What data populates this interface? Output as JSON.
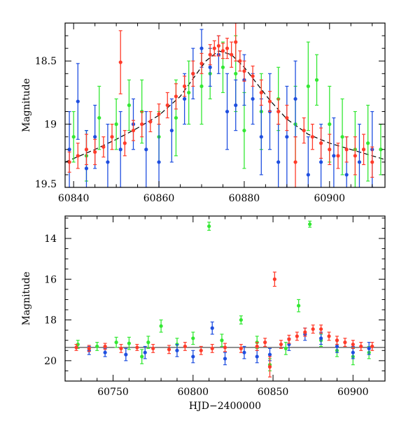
{
  "colors": {
    "red": "#ff3b2a",
    "green": "#33e833",
    "blue": "#1f4fe0",
    "model": "#000000"
  },
  "chart_data": [
    {
      "type": "scatter",
      "title": "",
      "xlabel": "",
      "ylabel": "Magnitude",
      "xlim": [
        60838,
        60913
      ],
      "ylim": [
        19.5,
        18.2
      ],
      "y_inverted": true,
      "xticks": [
        60840,
        60860,
        60880,
        60900
      ],
      "xtick_labels": [
        "60840",
        "60860",
        "60880",
        "60900"
      ],
      "yticks": [
        18.5,
        19,
        19.5
      ],
      "ytick_labels": [
        "18.5",
        "19",
        "19.5"
      ],
      "model_curve": {
        "x": [
          60838,
          60845,
          60850,
          60855,
          60860,
          60865,
          60868,
          60871,
          60874,
          60877,
          60880,
          60883,
          60886,
          60890,
          60895,
          60900,
          60905,
          60913
        ],
        "y": [
          19.3,
          19.2,
          19.12,
          19.03,
          18.93,
          18.78,
          18.64,
          18.5,
          18.42,
          18.45,
          18.55,
          18.68,
          18.81,
          18.96,
          19.08,
          19.15,
          19.2,
          19.28
        ]
      },
      "series": [
        {
          "color": "red",
          "points": [
            [
              60839,
              19.3,
              0.08
            ],
            [
              60841,
              19.25,
              0.1
            ],
            [
              60843,
              19.2,
              0.12
            ],
            [
              60845,
              19.22,
              0.1
            ],
            [
              60847,
              19.18,
              0.08
            ],
            [
              60849,
              19.1,
              0.1
            ],
            [
              60851,
              18.51,
              0.25
            ],
            [
              60852,
              19.15,
              0.1
            ],
            [
              60854,
              19.05,
              0.08
            ],
            [
              60856,
              19.0,
              0.1
            ],
            [
              60858,
              18.98,
              0.08
            ],
            [
              60860,
              18.92,
              0.08
            ],
            [
              60862,
              18.85,
              0.1
            ],
            [
              60864,
              18.78,
              0.1
            ],
            [
              60866,
              18.7,
              0.08
            ],
            [
              60868,
              18.6,
              0.1
            ],
            [
              60870,
              18.52,
              0.08
            ],
            [
              60872,
              18.45,
              0.08
            ],
            [
              60873,
              18.4,
              0.06
            ],
            [
              60874,
              18.38,
              0.08
            ],
            [
              60875,
              18.42,
              0.06
            ],
            [
              60876,
              18.4,
              0.08
            ],
            [
              60877,
              18.45,
              0.1
            ],
            [
              60878,
              18.35,
              0.15
            ],
            [
              60879,
              18.5,
              0.08
            ],
            [
              60880,
              18.58,
              0.08
            ],
            [
              60882,
              18.62,
              0.08
            ],
            [
              60884,
              18.75,
              0.1
            ],
            [
              60886,
              18.82,
              0.08
            ],
            [
              60888,
              18.9,
              0.1
            ],
            [
              60890,
              18.95,
              0.1
            ],
            [
              60892,
              19.3,
              0.2
            ],
            [
              60894,
              19.05,
              0.1
            ],
            [
              60896,
              19.1,
              0.1
            ],
            [
              60898,
              19.15,
              0.12
            ],
            [
              60900,
              19.2,
              0.12
            ],
            [
              60902,
              19.25,
              0.1
            ],
            [
              60904,
              19.2,
              0.1
            ],
            [
              60906,
              19.25,
              0.15
            ],
            [
              60908,
              19.2,
              0.12
            ],
            [
              60910,
              19.3,
              0.12
            ]
          ]
        },
        {
          "color": "green",
          "points": [
            [
              60840,
              19.1,
              0.2
            ],
            [
              60843,
              19.25,
              0.2
            ],
            [
              60846,
              18.95,
              0.25
            ],
            [
              60850,
              19.0,
              0.2
            ],
            [
              60853,
              18.85,
              0.2
            ],
            [
              60856,
              18.9,
              0.25
            ],
            [
              60860,
              19.1,
              0.2
            ],
            [
              60864,
              18.95,
              0.3
            ],
            [
              60867,
              18.75,
              0.25
            ],
            [
              60870,
              18.7,
              0.3
            ],
            [
              60872,
              18.6,
              0.2
            ],
            [
              60875,
              18.55,
              0.2
            ],
            [
              60878,
              18.6,
              0.3
            ],
            [
              60880,
              19.05,
              0.3
            ],
            [
              60884,
              18.9,
              0.3
            ],
            [
              60888,
              18.8,
              0.25
            ],
            [
              60892,
              19.0,
              0.3
            ],
            [
              60895,
              18.7,
              0.35
            ],
            [
              60897,
              18.65,
              0.2
            ],
            [
              60900,
              19.0,
              0.3
            ],
            [
              60903,
              19.1,
              0.3
            ],
            [
              60906,
              19.2,
              0.3
            ],
            [
              60909,
              19.15,
              0.3
            ],
            [
              60912,
              19.2,
              0.2
            ]
          ]
        },
        {
          "color": "blue",
          "points": [
            [
              60839,
              19.2,
              0.3
            ],
            [
              60841,
              18.82,
              0.3
            ],
            [
              60843,
              19.35,
              0.3
            ],
            [
              60845,
              19.1,
              0.25
            ],
            [
              60848,
              19.3,
              0.3
            ],
            [
              60851,
              19.2,
              0.3
            ],
            [
              60854,
              19.0,
              0.2
            ],
            [
              60857,
              19.2,
              0.3
            ],
            [
              60860,
              19.3,
              0.3
            ],
            [
              60863,
              19.05,
              0.25
            ],
            [
              60866,
              18.8,
              0.2
            ],
            [
              60868,
              18.6,
              0.2
            ],
            [
              60870,
              18.4,
              0.15
            ],
            [
              60872,
              18.55,
              0.15
            ],
            [
              60874,
              18.45,
              0.15
            ],
            [
              60876,
              18.9,
              0.3
            ],
            [
              60878,
              18.85,
              0.2
            ],
            [
              60880,
              18.65,
              0.2
            ],
            [
              60882,
              18.8,
              0.2
            ],
            [
              60884,
              19.1,
              0.3
            ],
            [
              60886,
              18.9,
              0.3
            ],
            [
              60888,
              19.3,
              0.3
            ],
            [
              60890,
              19.1,
              0.4
            ],
            [
              60892,
              18.8,
              0.3
            ],
            [
              60895,
              19.4,
              0.3
            ],
            [
              60898,
              19.3,
              0.3
            ],
            [
              60901,
              19.25,
              0.3
            ],
            [
              60904,
              19.4,
              0.3
            ],
            [
              60907,
              19.3,
              0.3
            ],
            [
              60910,
              19.2,
              0.3
            ]
          ]
        }
      ]
    },
    {
      "type": "scatter",
      "title": "",
      "xlabel": "HJD−2400000",
      "ylabel": "Magnitude",
      "xlim": [
        60720,
        60920
      ],
      "ylim": [
        21.0,
        12.9
      ],
      "y_inverted": true,
      "xticks": [
        60750,
        60800,
        60850,
        60900
      ],
      "xtick_labels": [
        "60750",
        "60800",
        "60850",
        "60900"
      ],
      "yticks": [
        14,
        16,
        18,
        20
      ],
      "ytick_labels": [
        "14",
        "16",
        "18",
        "20"
      ],
      "reference_line_y": 19.35,
      "series": [
        {
          "color": "red",
          "points": [
            [
              60727,
              19.35,
              0.15
            ],
            [
              60735,
              19.4,
              0.15
            ],
            [
              60745,
              19.3,
              0.15
            ],
            [
              60755,
              19.4,
              0.2
            ],
            [
              60765,
              19.35,
              0.15
            ],
            [
              60775,
              19.4,
              0.2
            ],
            [
              60785,
              19.45,
              0.2
            ],
            [
              60795,
              19.3,
              0.2
            ],
            [
              60805,
              19.5,
              0.2
            ],
            [
              60812,
              19.4,
              0.2
            ],
            [
              60820,
              19.35,
              0.2
            ],
            [
              60830,
              19.4,
              0.2
            ],
            [
              60840,
              19.3,
              0.2
            ],
            [
              60845,
              19.1,
              0.2
            ],
            [
              60848,
              20.3,
              0.5
            ],
            [
              60851,
              16.0,
              0.35
            ],
            [
              60855,
              19.2,
              0.2
            ],
            [
              60860,
              18.95,
              0.2
            ],
            [
              60865,
              18.8,
              0.2
            ],
            [
              60870,
              18.6,
              0.2
            ],
            [
              60875,
              18.45,
              0.2
            ],
            [
              60880,
              18.45,
              0.2
            ],
            [
              60885,
              18.8,
              0.2
            ],
            [
              60890,
              19.0,
              0.2
            ],
            [
              60895,
              19.1,
              0.2
            ],
            [
              60900,
              19.2,
              0.2
            ],
            [
              60905,
              19.3,
              0.2
            ],
            [
              60912,
              19.3,
              0.2
            ]
          ]
        },
        {
          "color": "green",
          "points": [
            [
              60728,
              19.2,
              0.2
            ],
            [
              60740,
              19.3,
              0.2
            ],
            [
              60752,
              19.1,
              0.25
            ],
            [
              60760,
              19.15,
              0.3
            ],
            [
              60768,
              19.8,
              0.35
            ],
            [
              60772,
              19.1,
              0.3
            ],
            [
              60780,
              18.3,
              0.3
            ],
            [
              60790,
              19.2,
              0.3
            ],
            [
              60800,
              18.9,
              0.3
            ],
            [
              60810,
              13.4,
              0.2
            ],
            [
              60818,
              19.0,
              0.3
            ],
            [
              60830,
              18.0,
              0.2
            ],
            [
              60840,
              19.1,
              0.3
            ],
            [
              60848,
              20.2,
              0.3
            ],
            [
              60858,
              19.4,
              0.3
            ],
            [
              60866,
              17.3,
              0.3
            ],
            [
              60873,
              13.3,
              0.15
            ],
            [
              60880,
              19.0,
              0.3
            ],
            [
              60890,
              19.5,
              0.3
            ],
            [
              60900,
              19.8,
              0.4
            ],
            [
              60910,
              19.6,
              0.3
            ]
          ]
        },
        {
          "color": "blue",
          "points": [
            [
              60735,
              19.5,
              0.2
            ],
            [
              60745,
              19.6,
              0.2
            ],
            [
              60758,
              19.7,
              0.3
            ],
            [
              60770,
              19.6,
              0.3
            ],
            [
              60790,
              19.5,
              0.3
            ],
            [
              60800,
              19.8,
              0.3
            ],
            [
              60812,
              18.4,
              0.3
            ],
            [
              60820,
              19.9,
              0.3
            ],
            [
              60832,
              19.6,
              0.3
            ],
            [
              60840,
              19.8,
              0.3
            ],
            [
              60848,
              19.7,
              0.3
            ],
            [
              60860,
              19.2,
              0.3
            ],
            [
              60870,
              18.7,
              0.3
            ],
            [
              60880,
              18.9,
              0.3
            ],
            [
              60890,
              19.3,
              0.3
            ],
            [
              60900,
              19.6,
              0.3
            ],
            [
              60910,
              19.4,
              0.3
            ]
          ]
        }
      ]
    }
  ]
}
